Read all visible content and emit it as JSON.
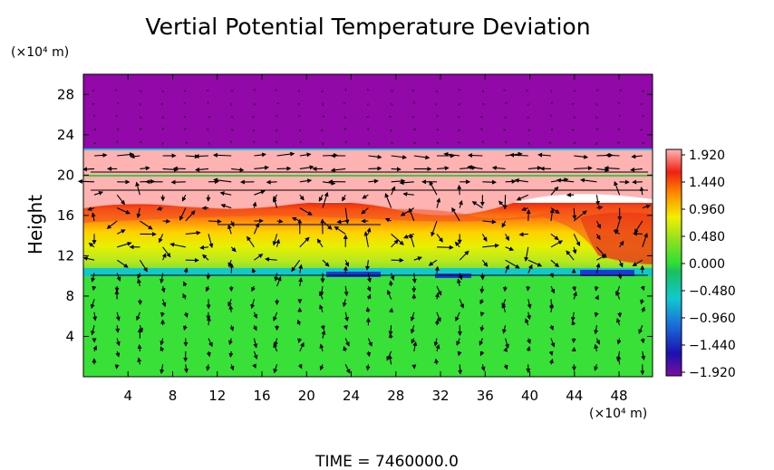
{
  "chart_data": {
    "type": "heatmap",
    "title": "Vertial Potential Temperature Deviation",
    "ylabel": "Height",
    "yunit": "(×10⁴ m)",
    "xunit": "(×10⁴ m)",
    "xlim": [
      0,
      51
    ],
    "ylim": [
      0,
      30
    ],
    "xticks": [
      "4",
      "8",
      "12",
      "16",
      "20",
      "24",
      "28",
      "32",
      "36",
      "40",
      "44",
      "48"
    ],
    "yticks": [
      "4",
      "8",
      "12",
      "16",
      "20",
      "24",
      "28"
    ],
    "colorbar": {
      "range": [
        -1.92,
        1.92
      ],
      "labels": [
        "1.920",
        "1.440",
        "0.960",
        "0.480",
        "0.000",
        "−0.480",
        "−0.960",
        "−1.440",
        "−1.920"
      ]
    },
    "overlay": "velocity vectors",
    "footer": "TIME = 7460000.0"
  }
}
